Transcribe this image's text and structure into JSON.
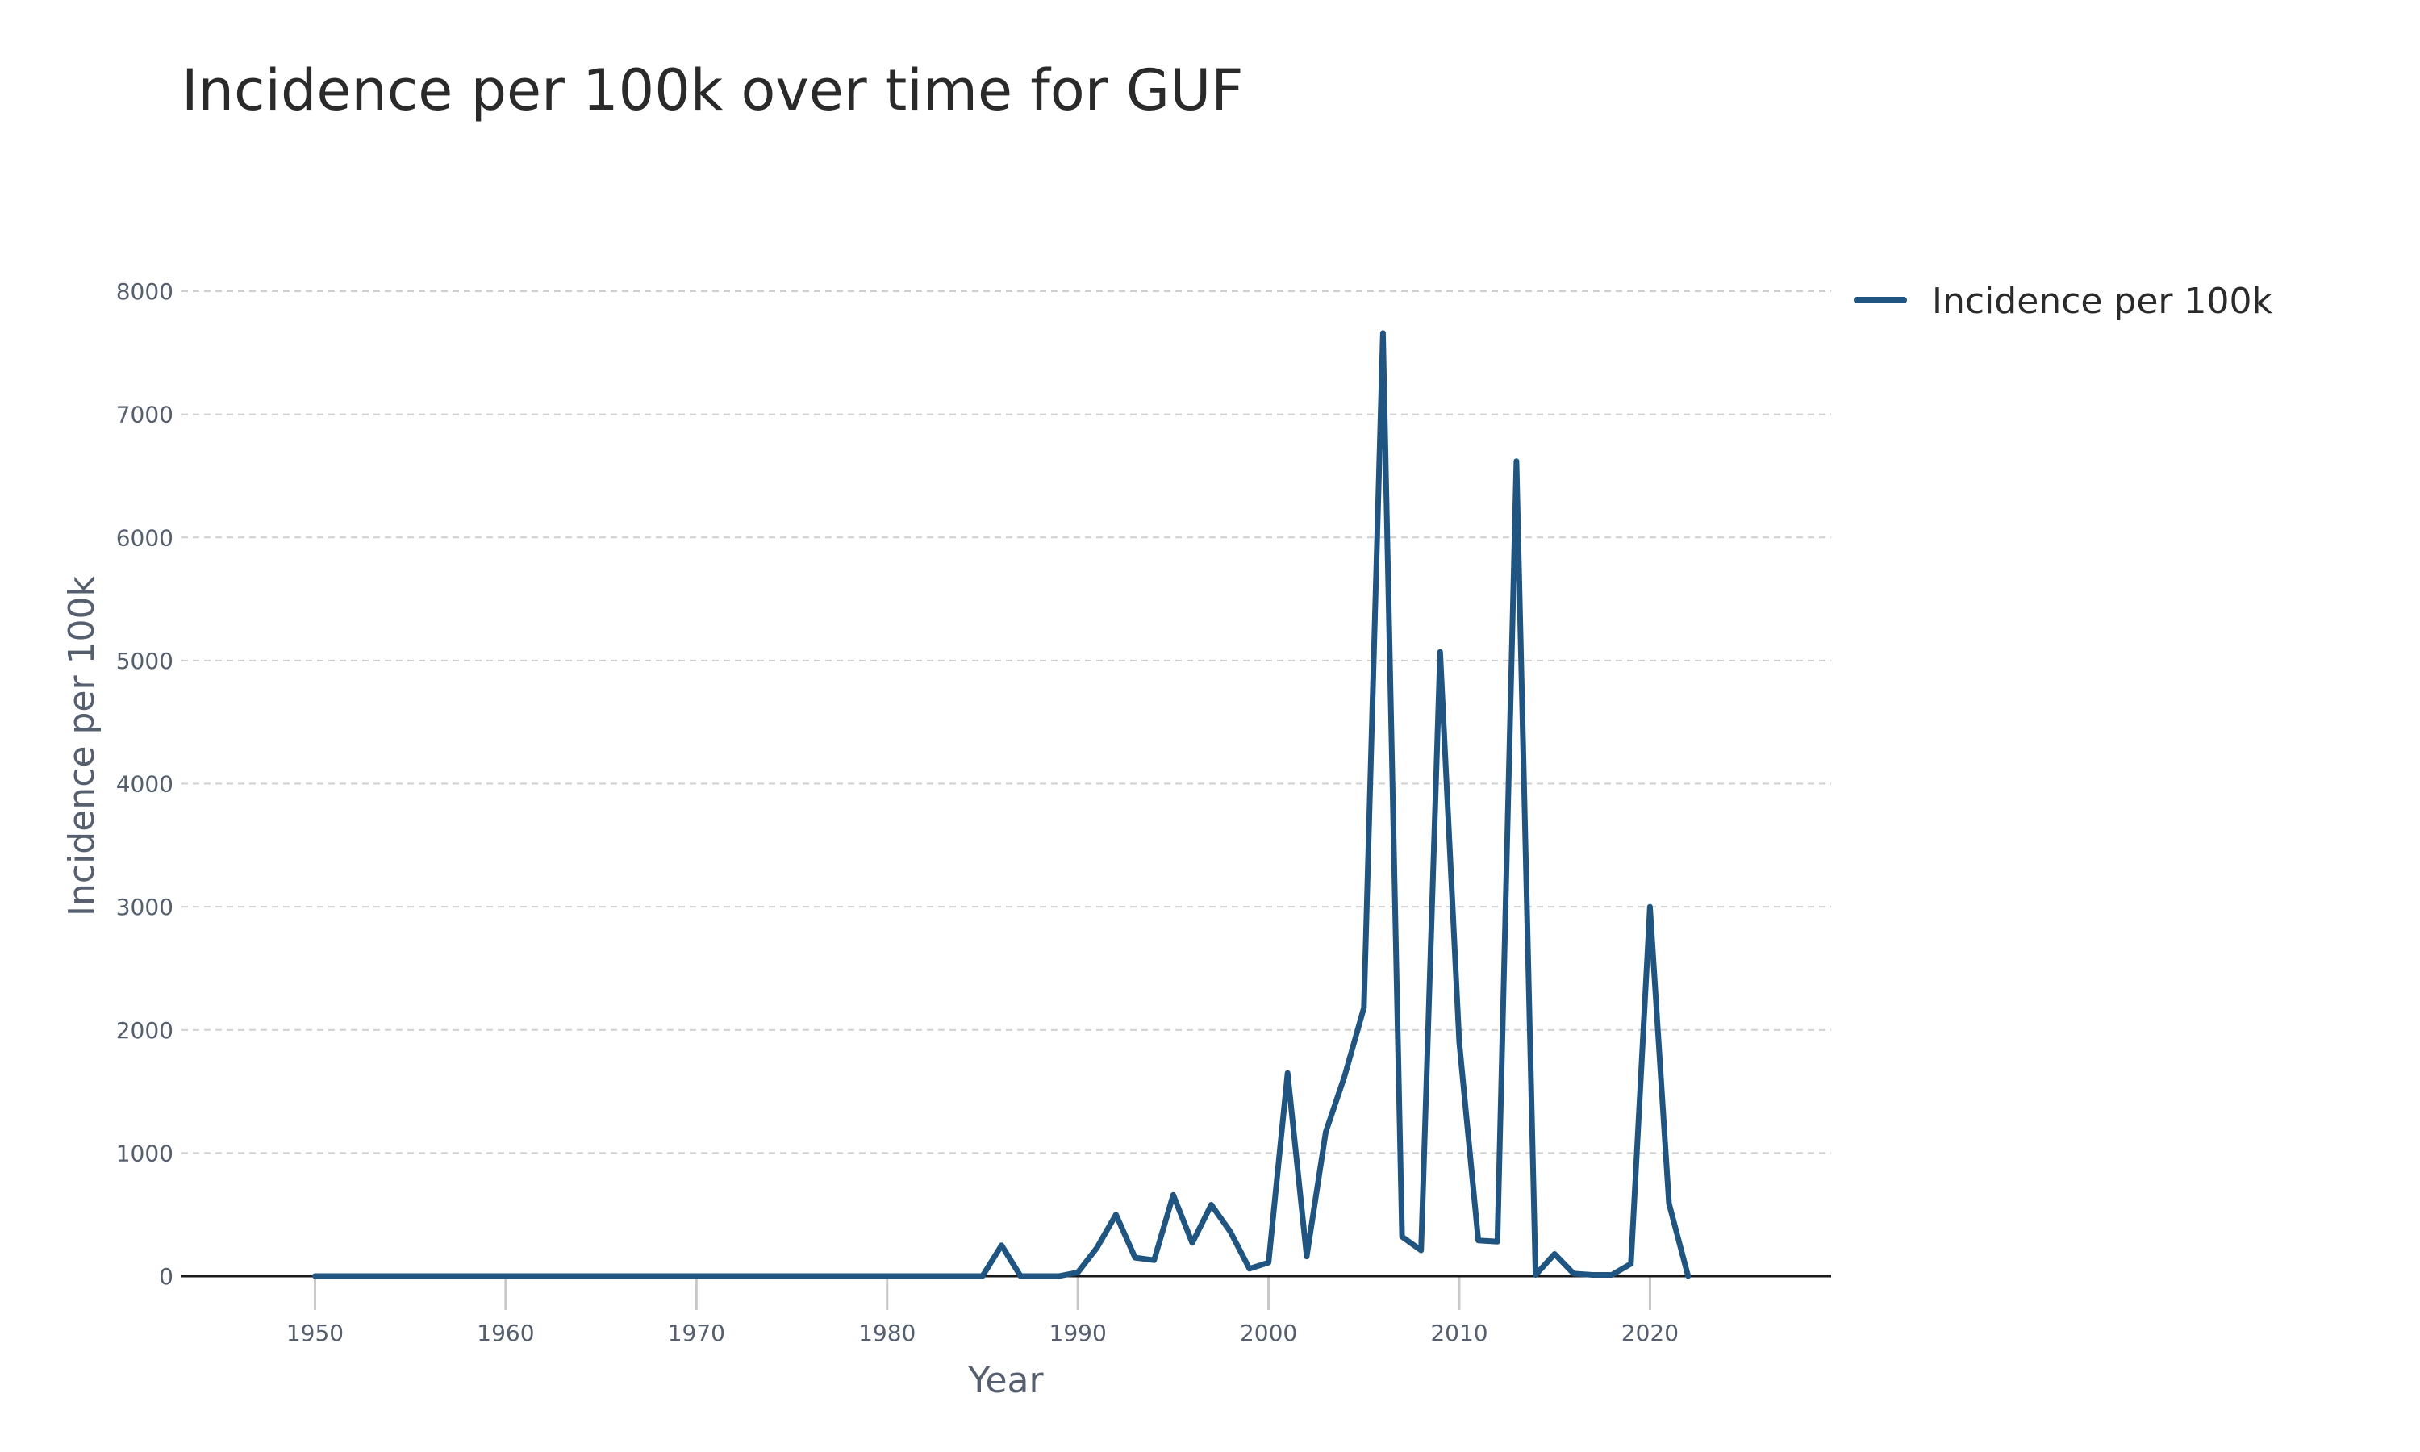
{
  "chart_data": {
    "type": "line",
    "title": "Incidence per 100k over time for GUF",
    "xlabel": "Year",
    "ylabel": "Incidence per 100k",
    "xlim": [
      1943,
      2029.5
    ],
    "ylim": [
      0,
      8400
    ],
    "x_ticks": [
      1950,
      1960,
      1970,
      1980,
      1990,
      2000,
      2010,
      2020
    ],
    "y_ticks": [
      0,
      1000,
      2000,
      3000,
      4000,
      5000,
      6000,
      7000,
      8000
    ],
    "grid": true,
    "legend": {
      "placement": "top-right"
    },
    "series": [
      {
        "name": "Incidence per 100k",
        "color": "#1f5580",
        "x": [
          1950,
          1951,
          1952,
          1953,
          1954,
          1955,
          1956,
          1957,
          1958,
          1959,
          1960,
          1961,
          1962,
          1963,
          1964,
          1965,
          1966,
          1967,
          1968,
          1969,
          1970,
          1971,
          1972,
          1973,
          1974,
          1975,
          1976,
          1977,
          1978,
          1979,
          1980,
          1981,
          1982,
          1983,
          1984,
          1985,
          1986,
          1987,
          1988,
          1989,
          1990,
          1991,
          1992,
          1993,
          1994,
          1995,
          1996,
          1997,
          1998,
          1999,
          2000,
          2001,
          2002,
          2003,
          2004,
          2005,
          2006,
          2007,
          2008,
          2009,
          2010,
          2011,
          2012,
          2013,
          2014,
          2015,
          2016,
          2017,
          2018,
          2019,
          2020,
          2021,
          2022
        ],
        "values": [
          0,
          0,
          0,
          0,
          0,
          0,
          0,
          0,
          0,
          0,
          0,
          0,
          0,
          0,
          0,
          0,
          0,
          0,
          0,
          0,
          0,
          0,
          0,
          0,
          0,
          0,
          0,
          0,
          0,
          0,
          0,
          0,
          0,
          0,
          0,
          0,
          250,
          0,
          0,
          0,
          30,
          230,
          500,
          150,
          130,
          660,
          270,
          580,
          360,
          60,
          110,
          1650,
          160,
          1170,
          1630,
          2180,
          7660,
          320,
          210,
          5070,
          1900,
          290,
          280,
          6620,
          10,
          180,
          20,
          10,
          10,
          100,
          3000,
          590,
          0
        ]
      }
    ]
  }
}
